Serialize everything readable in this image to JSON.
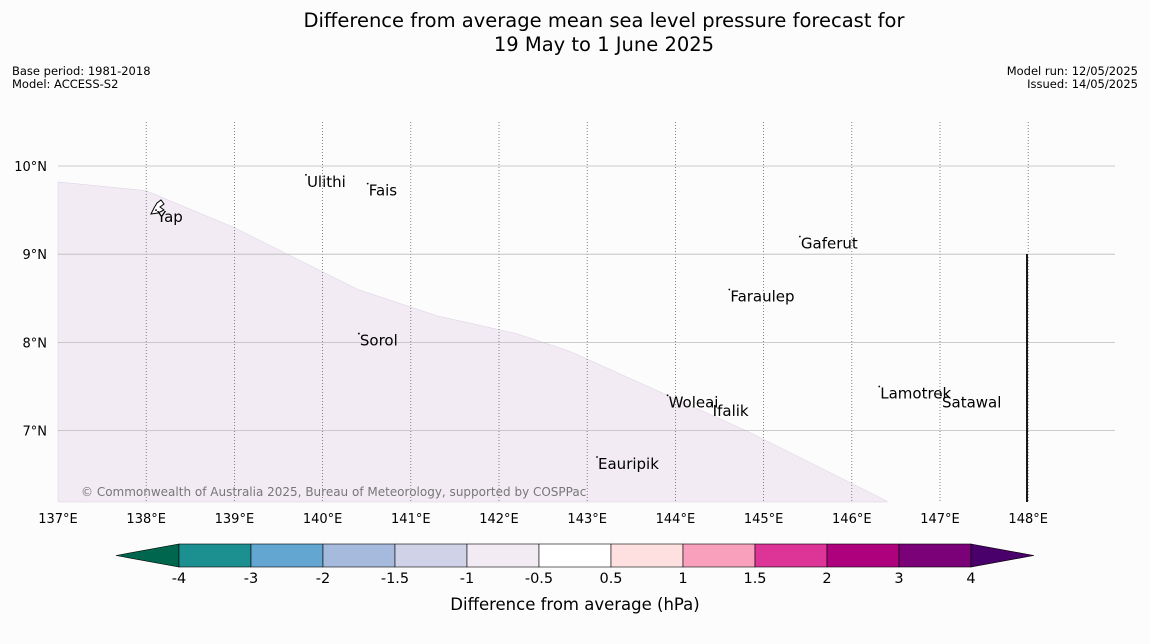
{
  "title": {
    "line1": "Difference from average mean sea level pressure forecast for",
    "line2": "19 May to 1 June 2025"
  },
  "meta": {
    "base_period": "Base period: 1981-2018",
    "model": "Model: ACCESS-S2",
    "model_run": "Model run: 12/05/2025",
    "issued": "Issued: 14/05/2025"
  },
  "map": {
    "extent": {
      "lon": [
        137,
        149
      ],
      "lat": [
        6.2,
        10.5
      ]
    },
    "lon_ticks": [
      "137°E",
      "138°E",
      "139°E",
      "140°E",
      "141°E",
      "142°E",
      "143°E",
      "144°E",
      "145°E",
      "146°E",
      "147°E",
      "148°E"
    ],
    "lat_ticks": [
      "10°N",
      "9°N",
      "8°N",
      "7°N"
    ],
    "places": [
      {
        "name": "Ulithi",
        "lon": 139.8,
        "lat": 9.9
      },
      {
        "name": "Fais",
        "lon": 140.5,
        "lat": 9.8
      },
      {
        "name": "Yap",
        "lon": 138.1,
        "lat": 9.5
      },
      {
        "name": "Gaferut",
        "lon": 145.4,
        "lat": 9.2
      },
      {
        "name": "Faraulep",
        "lon": 144.6,
        "lat": 8.6
      },
      {
        "name": "Sorol",
        "lon": 140.4,
        "lat": 8.1
      },
      {
        "name": "Lamotrek",
        "lon": 146.3,
        "lat": 7.5
      },
      {
        "name": "Satawal",
        "lon": 147.0,
        "lat": 7.4
      },
      {
        "name": "Woleai",
        "lon": 143.9,
        "lat": 7.4
      },
      {
        "name": "Ifalik",
        "lon": 144.4,
        "lat": 7.3
      },
      {
        "name": "Eauripik",
        "lon": 143.1,
        "lat": 6.7
      }
    ],
    "anomaly_region": {
      "category": "-1 to -0.5",
      "color": "#f2ebf4",
      "boundary": [
        [
          137.0,
          9.82
        ],
        [
          138.0,
          9.72
        ],
        [
          139.0,
          9.3
        ],
        [
          139.7,
          8.95
        ],
        [
          140.4,
          8.6
        ],
        [
          141.3,
          8.3
        ],
        [
          142.2,
          8.1
        ],
        [
          142.8,
          7.9
        ],
        [
          143.8,
          7.45
        ],
        [
          144.8,
          7.0
        ],
        [
          145.6,
          6.6
        ],
        [
          146.4,
          6.2
        ]
      ]
    },
    "copyright": "© Commonwealth of Australia 2025, Bureau of Meteorology, supported by COSPPac"
  },
  "colorbar": {
    "label": "Difference from average (hPa)",
    "tick_labels": [
      "-4",
      "-3",
      "-2",
      "-1.5",
      "-1",
      "-0.5",
      "0.5",
      "1",
      "1.5",
      "2",
      "3",
      "4"
    ],
    "colors": {
      "extend_low": "#00664e",
      "bins": [
        "#1c8f91",
        "#62a6d1",
        "#a6bade",
        "#d0d2e7",
        "#f2ebf4",
        "#ffffff",
        "#ffe0e0",
        "#f8a0bc",
        "#dd3498",
        "#ae017e",
        "#7a0177"
      ],
      "extend_high": "#49006a"
    }
  }
}
